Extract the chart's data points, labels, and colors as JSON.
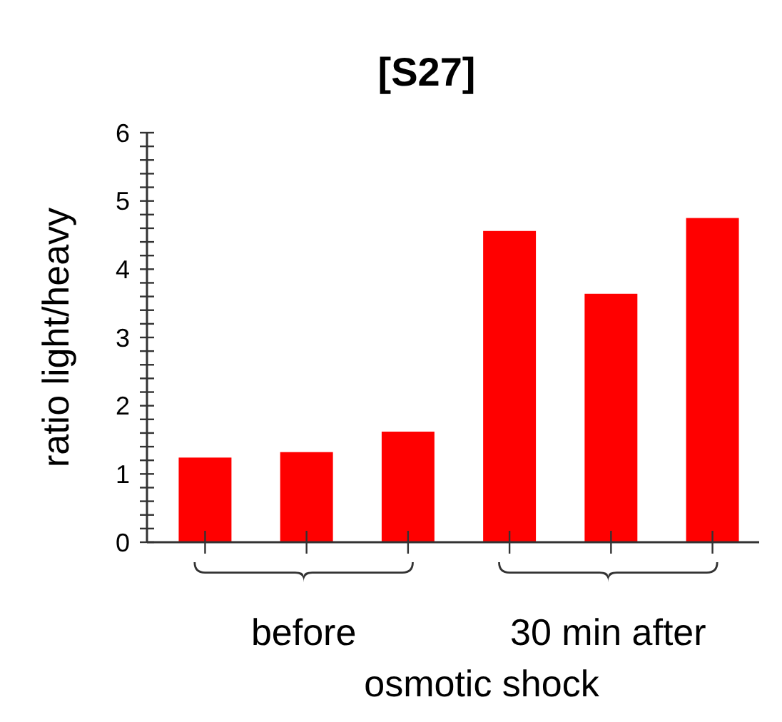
{
  "chart_data": {
    "type": "bar",
    "title": "[S27]",
    "ylabel": "ratio light/heavy",
    "xlabel": "osmotic shock",
    "categories": [
      null,
      null,
      null,
      null,
      null,
      null
    ],
    "values": [
      1.24,
      1.32,
      1.62,
      4.56,
      3.64,
      4.75
    ],
    "color": "#ff0000",
    "ylim": [
      0,
      6
    ],
    "yticks": [
      0,
      {
        "value": 0.2,
        "label": null
      },
      {
        "value": 0.4,
        "label": null
      },
      {
        "value": 0.6,
        "label": null
      },
      {
        "value": 0.8,
        "label": null
      },
      1,
      {
        "value": 1.2,
        "label": null
      },
      {
        "value": 1.4,
        "label": null
      },
      {
        "value": 1.6,
        "label": null
      },
      {
        "value": 1.8,
        "label": null
      },
      2,
      {
        "value": 2.2,
        "label": null
      },
      {
        "value": 2.4,
        "label": null
      },
      {
        "value": 2.6,
        "label": null
      },
      {
        "value": 2.8,
        "label": null
      },
      3,
      {
        "value": 3.2,
        "label": null
      },
      {
        "value": 3.4,
        "label": null
      },
      {
        "value": 3.6,
        "label": null
      },
      {
        "value": 3.8,
        "label": null
      },
      4,
      {
        "value": 4.2,
        "label": null
      },
      {
        "value": 4.4,
        "label": null
      },
      {
        "value": 4.6,
        "label": null
      },
      {
        "value": 4.8,
        "label": null
      },
      5,
      {
        "value": 5.2,
        "label": null
      },
      {
        "value": 5.4,
        "label": null
      },
      {
        "value": 5.6,
        "label": null
      },
      {
        "value": 5.8,
        "label": null
      },
      6
    ],
    "annotations": [
      "before",
      "30 min after"
    ],
    "grid": false
  }
}
